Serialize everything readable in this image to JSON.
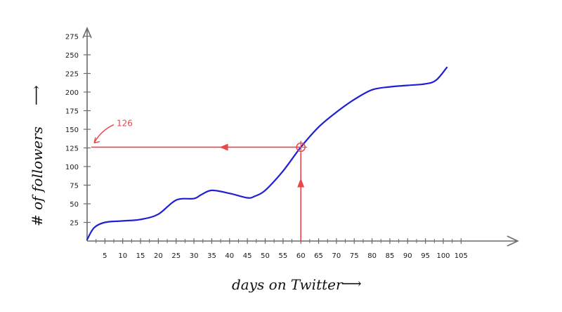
{
  "chart_data": {
    "type": "line",
    "title": "",
    "xlabel": "days on Twitter",
    "ylabel": "# of followers",
    "x_arrow": "⟶",
    "y_arrow": "⟶",
    "xlim": [
      0,
      120
    ],
    "ylim": [
      0,
      285
    ],
    "xticks": [
      5,
      10,
      15,
      20,
      25,
      30,
      35,
      40,
      45,
      50,
      55,
      60,
      65,
      70,
      75,
      80,
      85,
      90,
      95,
      100,
      105
    ],
    "yticks": [
      25,
      50,
      75,
      100,
      125,
      150,
      175,
      200,
      225,
      250,
      275
    ],
    "grid": false,
    "legend": "none",
    "series": [
      {
        "color": "#1f1fd6",
        "x": [
          0,
          2,
          5,
          10,
          15,
          20,
          25,
          30,
          32,
          35,
          40,
          45,
          47,
          50,
          55,
          60,
          65,
          70,
          75,
          80,
          85,
          90,
          95,
          98,
          101
        ],
        "y": [
          2,
          18,
          25,
          27,
          29,
          36,
          55,
          57,
          62,
          68,
          64,
          58,
          60,
          68,
          94,
          126,
          153,
          173,
          190,
          203,
          207,
          209,
          211,
          216,
          233
        ]
      }
    ],
    "annotations": [
      {
        "text": "126",
        "x": 60,
        "y": 126,
        "color": "#e8474c",
        "description_free": true
      }
    ]
  }
}
